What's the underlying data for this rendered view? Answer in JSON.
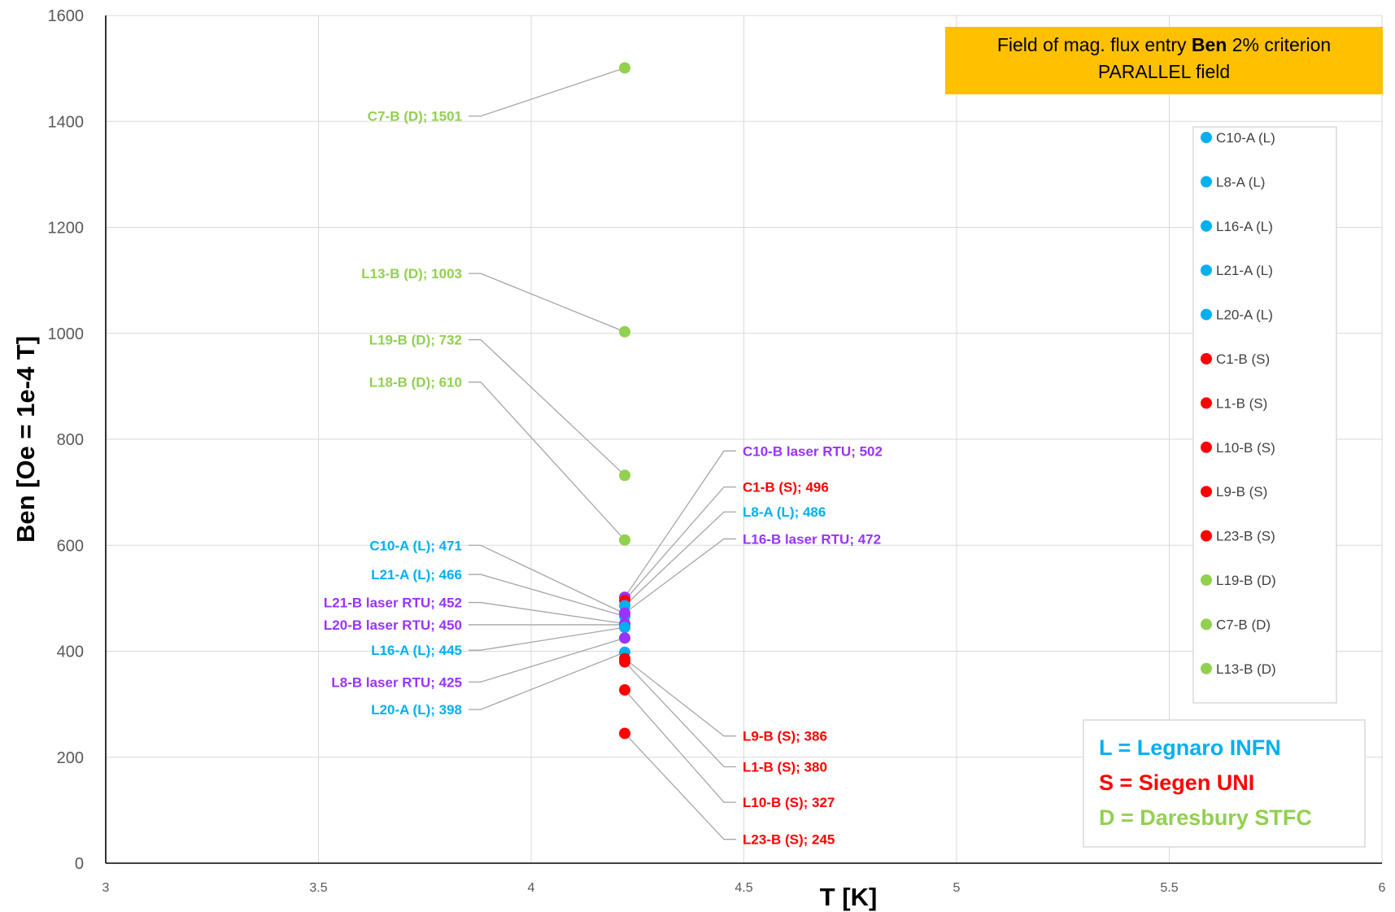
{
  "chart_data": {
    "type": "scatter",
    "title_lines": [
      [
        {
          "text": "Field of mag. flux entry ",
          "bold": false
        },
        {
          "text": "Ben",
          "bold": true
        },
        {
          "text": " 2% criterion",
          "bold": false
        }
      ],
      [
        {
          "text": "PARALLEL field",
          "bold": false
        }
      ]
    ],
    "title_bg": "#FFC000",
    "xlabel": "T [K]",
    "ylabel": "Ben [Oe = 1e-4 T]",
    "xlim": [
      3,
      6
    ],
    "ylim": [
      0,
      1600
    ],
    "xticks": [
      {
        "value": 3,
        "label": "3"
      },
      {
        "value": 3.5,
        "label": "3.5"
      },
      {
        "value": 4,
        "label": "4"
      },
      {
        "value": 4.5,
        "label": "4.5"
      },
      {
        "value": 5,
        "label": "5"
      },
      {
        "value": 5.5,
        "label": "5.5"
      },
      {
        "value": 6,
        "label": "6"
      }
    ],
    "yticks": [
      {
        "value": 0,
        "label": "0"
      },
      {
        "value": 200,
        "label": "200"
      },
      {
        "value": 400,
        "label": "400"
      },
      {
        "value": 600,
        "label": "600"
      },
      {
        "value": 800,
        "label": "800"
      },
      {
        "value": 1000,
        "label": "1000"
      },
      {
        "value": 1200,
        "label": "1200"
      },
      {
        "value": 1400,
        "label": "1400"
      },
      {
        "value": 1600,
        "label": "1600"
      }
    ],
    "grid": true,
    "colors": {
      "L": "#00B0F0",
      "S": "#FF0000",
      "D": "#92D050",
      "RTU": "#9933FF"
    },
    "points": [
      {
        "label": "C10-A (L); 471",
        "x": 4.22,
        "y": 471,
        "group": "L",
        "label_side": "left",
        "label_y": 600
      },
      {
        "label": "L21-A (L); 466",
        "x": 4.22,
        "y": 466,
        "group": "L",
        "label_side": "left",
        "label_y": 545
      },
      {
        "label": "L21-B laser RTU; 452",
        "x": 4.22,
        "y": 452,
        "group": "RTU",
        "label_side": "left",
        "label_y": 492
      },
      {
        "label": "L20-B laser RTU; 450",
        "x": 4.22,
        "y": 450,
        "group": "RTU",
        "label_side": "left",
        "label_y": 450
      },
      {
        "label": "L16-A (L); 445",
        "x": 4.22,
        "y": 445,
        "group": "L",
        "label_side": "left",
        "label_y": 402
      },
      {
        "label": "L8-B laser RTU; 425",
        "x": 4.22,
        "y": 425,
        "group": "RTU",
        "label_side": "left",
        "label_y": 342
      },
      {
        "label": "L20-A (L); 398",
        "x": 4.22,
        "y": 398,
        "group": "L",
        "label_side": "left",
        "label_y": 290
      },
      {
        "label": "C7-B (D); 1501",
        "x": 4.22,
        "y": 1501,
        "group": "D",
        "label_side": "left",
        "label_y": 1410
      },
      {
        "label": "L13-B (D); 1003",
        "x": 4.22,
        "y": 1003,
        "group": "D",
        "label_side": "left",
        "label_y": 1113
      },
      {
        "label": "L19-B (D); 732",
        "x": 4.22,
        "y": 732,
        "group": "D",
        "label_side": "left",
        "label_y": 988
      },
      {
        "label": "L18-B (D); 610",
        "x": 4.22,
        "y": 610,
        "group": "D",
        "label_side": "left",
        "label_y": 908
      },
      {
        "label": "C10-B laser RTU; 502",
        "x": 4.22,
        "y": 502,
        "group": "RTU",
        "label_side": "right",
        "label_y": 778
      },
      {
        "label": "C1-B (S); 496",
        "x": 4.22,
        "y": 496,
        "group": "S",
        "label_side": "right",
        "label_y": 710
      },
      {
        "label": "L8-A (L); 486",
        "x": 4.22,
        "y": 486,
        "group": "L",
        "label_side": "right",
        "label_y": 663
      },
      {
        "label": "L16-B laser RTU; 472",
        "x": 4.22,
        "y": 472,
        "group": "RTU",
        "label_side": "right",
        "label_y": 612
      },
      {
        "label": "L9-B (S); 386",
        "x": 4.22,
        "y": 386,
        "group": "S",
        "label_side": "right",
        "label_y": 240
      },
      {
        "label": "L1-B (S); 380",
        "x": 4.22,
        "y": 380,
        "group": "S",
        "label_side": "right",
        "label_y": 182
      },
      {
        "label": "L10-B (S); 327",
        "x": 4.22,
        "y": 327,
        "group": "S",
        "label_side": "right",
        "label_y": 115
      },
      {
        "label": "L23-B (S); 245",
        "x": 4.22,
        "y": 245,
        "group": "S",
        "label_side": "right",
        "label_y": 45
      }
    ],
    "legend": {
      "placement": "right",
      "entries": [
        {
          "name": "C10-A (L)",
          "group": "L"
        },
        {
          "name": "L8-A (L)",
          "group": "L"
        },
        {
          "name": "L16-A (L)",
          "group": "L"
        },
        {
          "name": "L21-A (L)",
          "group": "L"
        },
        {
          "name": "L20-A (L)",
          "group": "L"
        },
        {
          "name": "C1-B (S)",
          "group": "S"
        },
        {
          "name": "L1-B (S)",
          "group": "S"
        },
        {
          "name": "L10-B (S)",
          "group": "S"
        },
        {
          "name": "L9-B (S)",
          "group": "S"
        },
        {
          "name": "L23-B (S)",
          "group": "S"
        },
        {
          "name": "L19-B (D)",
          "group": "D"
        },
        {
          "name": "C7-B (D)",
          "group": "D"
        },
        {
          "name": "L13-B (D)",
          "group": "D"
        }
      ]
    },
    "key_box": {
      "placement": "bottom-right",
      "lines": [
        {
          "text": "L = Legnaro INFN",
          "group": "L"
        },
        {
          "text": "S = Siegen UNI",
          "group": "S"
        },
        {
          "text": "D = Daresbury STFC",
          "group": "D"
        }
      ]
    }
  }
}
